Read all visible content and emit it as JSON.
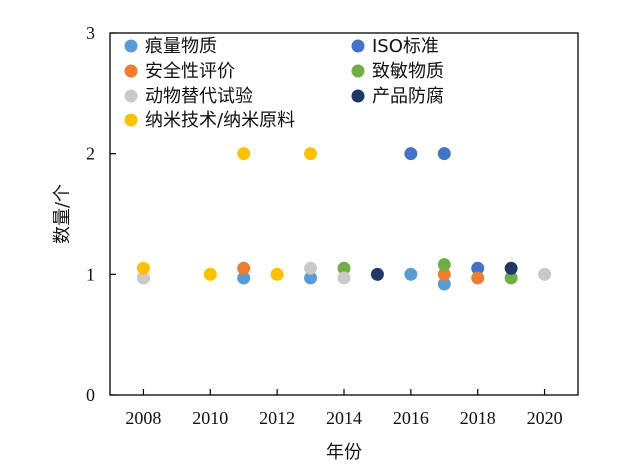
{
  "chart_data": {
    "type": "scatter",
    "title": "",
    "xlabel": "年份",
    "ylabel": "数量/个",
    "xlim": [
      2007,
      2021
    ],
    "ylim": [
      0,
      3
    ],
    "xticks": [
      "2008",
      "2010",
      "2012",
      "2014",
      "2016",
      "2018",
      "2020"
    ],
    "yticks": [
      "0",
      "1",
      "2",
      "3"
    ],
    "grid": false,
    "legend_position": "top",
    "series": [
      {
        "name": "痕量物质",
        "color": "#5b9bd5",
        "points": [
          [
            2008,
            0.97
          ],
          [
            2011,
            0.97
          ],
          [
            2013,
            0.97
          ],
          [
            2016,
            1.0
          ],
          [
            2017,
            0.92
          ]
        ]
      },
      {
        "name": "ISO标准",
        "color": "#4472c4",
        "points": [
          [
            2016,
            2
          ],
          [
            2017,
            2
          ],
          [
            2018,
            1.05
          ]
        ]
      },
      {
        "name": "安全性评价",
        "color": "#ed7d31",
        "points": [
          [
            2011,
            1.05
          ],
          [
            2017,
            1.0
          ],
          [
            2018,
            0.97
          ]
        ]
      },
      {
        "name": "致敏物质",
        "color": "#70ad47",
        "points": [
          [
            2014,
            1.05
          ],
          [
            2017,
            1.08
          ],
          [
            2019,
            0.97
          ]
        ]
      },
      {
        "name": "动物替代试验",
        "color": "#c9c9c9",
        "points": [
          [
            2008,
            0.97
          ],
          [
            2013,
            1.05
          ],
          [
            2014,
            0.97
          ],
          [
            2020,
            1.0
          ]
        ]
      },
      {
        "name": "产品防腐",
        "color": "#1f3864",
        "points": [
          [
            2015,
            1.0
          ],
          [
            2019,
            1.05
          ]
        ]
      },
      {
        "name": "纳米技术/纳米原料",
        "color": "#ffc000",
        "points": [
          [
            2008,
            1.05
          ],
          [
            2010,
            1.0
          ],
          [
            2011,
            2
          ],
          [
            2012,
            1.0
          ],
          [
            2013,
            2
          ]
        ]
      }
    ]
  }
}
